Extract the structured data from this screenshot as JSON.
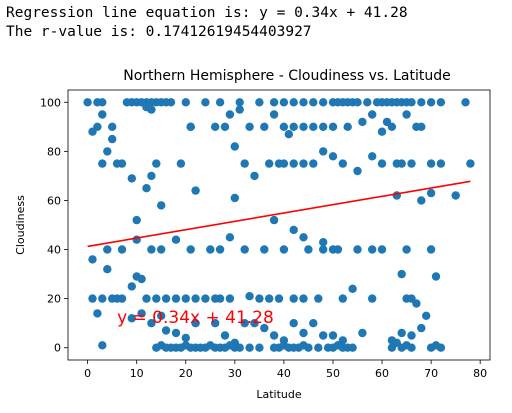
{
  "output": {
    "line1": "Regression line equation is: y = 0.34x + 41.28",
    "line2": "The r-value is: 0.17412619454403927"
  },
  "chart_data": {
    "type": "scatter",
    "title": "Northern Hemisphere - Cloudiness vs. Latitude",
    "xlabel": "Latitude",
    "ylabel": "Cloudiness",
    "xlim": [
      -4,
      82
    ],
    "ylim": [
      -5,
      105
    ],
    "xticks": [
      0,
      10,
      20,
      30,
      40,
      50,
      60,
      70,
      80
    ],
    "yticks": [
      0,
      20,
      40,
      60,
      80,
      100
    ],
    "grid": false,
    "point_color": "#1f77b4",
    "line_color": "#ff0000",
    "regression": {
      "slope": 0.34,
      "intercept": 41.28,
      "x_range": [
        0,
        78
      ]
    },
    "annotation": {
      "text": "y = 0.34x + 41.28",
      "x": 6,
      "y": 10
    },
    "points": [
      [
        0,
        100
      ],
      [
        1,
        88
      ],
      [
        2,
        100
      ],
      [
        3,
        100
      ],
      [
        5,
        90
      ],
      [
        3,
        95
      ],
      [
        8,
        100
      ],
      [
        9,
        100
      ],
      [
        10,
        100
      ],
      [
        11,
        100
      ],
      [
        12,
        100
      ],
      [
        13,
        100
      ],
      [
        14,
        100
      ],
      [
        15,
        100
      ],
      [
        16,
        100
      ],
      [
        17,
        100
      ],
      [
        20,
        100
      ],
      [
        24,
        100
      ],
      [
        27,
        100
      ],
      [
        31,
        100
      ],
      [
        35,
        100
      ],
      [
        38,
        100
      ],
      [
        40,
        100
      ],
      [
        42,
        100
      ],
      [
        44,
        100
      ],
      [
        46,
        100
      ],
      [
        48,
        100
      ],
      [
        50,
        100
      ],
      [
        51,
        100
      ],
      [
        52,
        100
      ],
      [
        53,
        100
      ],
      [
        54,
        100
      ],
      [
        55,
        100
      ],
      [
        57,
        100
      ],
      [
        59,
        100
      ],
      [
        60,
        100
      ],
      [
        61,
        100
      ],
      [
        62,
        100
      ],
      [
        63,
        100
      ],
      [
        64,
        100
      ],
      [
        65,
        100
      ],
      [
        66,
        100
      ],
      [
        68,
        100
      ],
      [
        70,
        100
      ],
      [
        72,
        100
      ],
      [
        77,
        100
      ],
      [
        2,
        90
      ],
      [
        5,
        85
      ],
      [
        4,
        80
      ],
      [
        12,
        98
      ],
      [
        13,
        97
      ],
      [
        21,
        90
      ],
      [
        26,
        90
      ],
      [
        29,
        95
      ],
      [
        31,
        97
      ],
      [
        33,
        90
      ],
      [
        36,
        90
      ],
      [
        38,
        95
      ],
      [
        40,
        90
      ],
      [
        41,
        87
      ],
      [
        42,
        90
      ],
      [
        44,
        90
      ],
      [
        46,
        90
      ],
      [
        48,
        90
      ],
      [
        50,
        90
      ],
      [
        53,
        90
      ],
      [
        56,
        92
      ],
      [
        58,
        95
      ],
      [
        60,
        88
      ],
      [
        61,
        92
      ],
      [
        62,
        90
      ],
      [
        65,
        95
      ],
      [
        67,
        90
      ],
      [
        68,
        90
      ],
      [
        3,
        75
      ],
      [
        6,
        75
      ],
      [
        7,
        75
      ],
      [
        9,
        69
      ],
      [
        13,
        70
      ],
      [
        14,
        75
      ],
      [
        19,
        75
      ],
      [
        21,
        90
      ],
      [
        28,
        90
      ],
      [
        30,
        82
      ],
      [
        32,
        75
      ],
      [
        37,
        75
      ],
      [
        39,
        75
      ],
      [
        40,
        75
      ],
      [
        42,
        75
      ],
      [
        44,
        75
      ],
      [
        46,
        75
      ],
      [
        48,
        80
      ],
      [
        50,
        78
      ],
      [
        52,
        75
      ],
      [
        55,
        72
      ],
      [
        58,
        78
      ],
      [
        60,
        75
      ],
      [
        63,
        75
      ],
      [
        64,
        75
      ],
      [
        66,
        75
      ],
      [
        70,
        75
      ],
      [
        72,
        75
      ],
      [
        78,
        75
      ],
      [
        10,
        52
      ],
      [
        12,
        65
      ],
      [
        15,
        58
      ],
      [
        22,
        64
      ],
      [
        30,
        61
      ],
      [
        34,
        70
      ],
      [
        38,
        52
      ],
      [
        44,
        45
      ],
      [
        48,
        43
      ],
      [
        50,
        40
      ],
      [
        58,
        40
      ],
      [
        63,
        62
      ],
      [
        68,
        60
      ],
      [
        70,
        63
      ],
      [
        75,
        62
      ],
      [
        1,
        36
      ],
      [
        4,
        40
      ],
      [
        7,
        40
      ],
      [
        10,
        44
      ],
      [
        13,
        40
      ],
      [
        15,
        40
      ],
      [
        18,
        44
      ],
      [
        21,
        40
      ],
      [
        25,
        40
      ],
      [
        27,
        40
      ],
      [
        29,
        45
      ],
      [
        32,
        40
      ],
      [
        36,
        40
      ],
      [
        40,
        40
      ],
      [
        42,
        48
      ],
      [
        45,
        40
      ],
      [
        48,
        40
      ],
      [
        51,
        40
      ],
      [
        55,
        40
      ],
      [
        60,
        40
      ],
      [
        65,
        40
      ],
      [
        70,
        40
      ],
      [
        1,
        20
      ],
      [
        3,
        20
      ],
      [
        4,
        32
      ],
      [
        5,
        20
      ],
      [
        7,
        20
      ],
      [
        9,
        25
      ],
      [
        10,
        29
      ],
      [
        11,
        28
      ],
      [
        12,
        20
      ],
      [
        14,
        20
      ],
      [
        16,
        20
      ],
      [
        18,
        20
      ],
      [
        20,
        20
      ],
      [
        22,
        20
      ],
      [
        24,
        20
      ],
      [
        26,
        20
      ],
      [
        27,
        20
      ],
      [
        29,
        20
      ],
      [
        33,
        21
      ],
      [
        35,
        20
      ],
      [
        37,
        20
      ],
      [
        39,
        20
      ],
      [
        42,
        20
      ],
      [
        44,
        20
      ],
      [
        47,
        20
      ],
      [
        52,
        20
      ],
      [
        54,
        24
      ],
      [
        58,
        20
      ],
      [
        64,
        30
      ],
      [
        65,
        20
      ],
      [
        66,
        20
      ],
      [
        67,
        18
      ],
      [
        69,
        13
      ],
      [
        71,
        29
      ],
      [
        2,
        14
      ],
      [
        3,
        1
      ],
      [
        6,
        20
      ],
      [
        9,
        12
      ],
      [
        11,
        14
      ],
      [
        13,
        10
      ],
      [
        15,
        13
      ],
      [
        16,
        7
      ],
      [
        18,
        6
      ],
      [
        20,
        4
      ],
      [
        22,
        10
      ],
      [
        26,
        10
      ],
      [
        28,
        5
      ],
      [
        30,
        2
      ],
      [
        32,
        10
      ],
      [
        34,
        10
      ],
      [
        36,
        8
      ],
      [
        38,
        5
      ],
      [
        40,
        3
      ],
      [
        42,
        10
      ],
      [
        44,
        6
      ],
      [
        46,
        10
      ],
      [
        48,
        5
      ],
      [
        50,
        5
      ],
      [
        52,
        3
      ],
      [
        56,
        6
      ],
      [
        62,
        3
      ],
      [
        64,
        6
      ],
      [
        66,
        5
      ],
      [
        68,
        8
      ],
      [
        14,
        0
      ],
      [
        15,
        1
      ],
      [
        16,
        0
      ],
      [
        17,
        0
      ],
      [
        18,
        0
      ],
      [
        19,
        0
      ],
      [
        20,
        1
      ],
      [
        21,
        0
      ],
      [
        22,
        0
      ],
      [
        23,
        0
      ],
      [
        24,
        0
      ],
      [
        25,
        1
      ],
      [
        26,
        0
      ],
      [
        27,
        0
      ],
      [
        28,
        0
      ],
      [
        29,
        1
      ],
      [
        30,
        0
      ],
      [
        31,
        0
      ],
      [
        33,
        0
      ],
      [
        35,
        0
      ],
      [
        38,
        0
      ],
      [
        39,
        0
      ],
      [
        40,
        1
      ],
      [
        41,
        0
      ],
      [
        42,
        0
      ],
      [
        43,
        0
      ],
      [
        44,
        1
      ],
      [
        45,
        0
      ],
      [
        47,
        0
      ],
      [
        49,
        0
      ],
      [
        50,
        0
      ],
      [
        51,
        1
      ],
      [
        52,
        0
      ],
      [
        53,
        0
      ],
      [
        54,
        0
      ],
      [
        62,
        0
      ],
      [
        63,
        2
      ],
      [
        64,
        0
      ],
      [
        65,
        1
      ],
      [
        66,
        0
      ],
      [
        70,
        0
      ],
      [
        71,
        1
      ],
      [
        72,
        0
      ]
    ]
  }
}
